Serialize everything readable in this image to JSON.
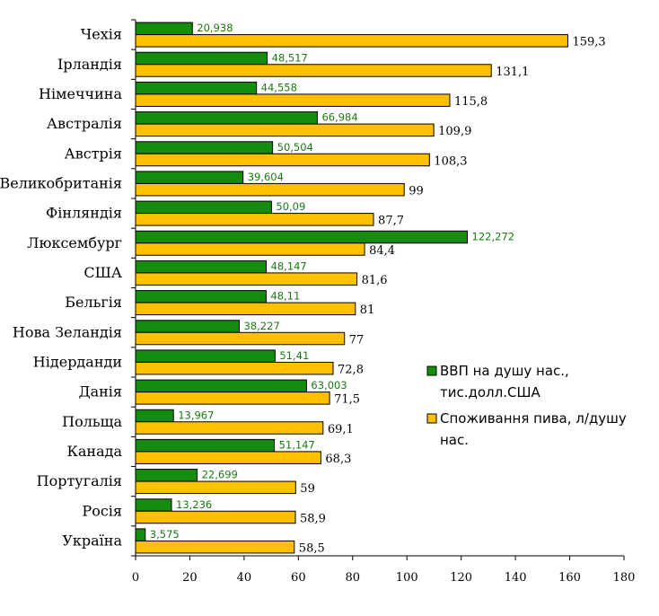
{
  "chart_data": {
    "type": "bar",
    "orientation": "horizontal",
    "categories": [
      "Чехія",
      "Ірландія",
      "Німеччина",
      "Австралія",
      "Австрія",
      "Великобританія",
      "Фінляндія",
      "Люксембург",
      "США",
      "Бельгія",
      "Нова Зеландія",
      "Нідерданди",
      "Данія",
      "Польща",
      "Канада",
      "Португалія",
      "Росія",
      "Україна"
    ],
    "series": [
      {
        "name_lines": [
          "ВВП на душу нас.,",
          "тис.долл.США"
        ],
        "color": "#168c0e",
        "values": [
          20.938,
          48.517,
          44.558,
          66.984,
          50.504,
          39.604,
          50.09,
          122.272,
          48.147,
          48.11,
          38.227,
          51.41,
          63.003,
          13.967,
          51.147,
          22.699,
          13.236,
          3.575
        ],
        "labels": [
          "20,938",
          "48,517",
          "44,558",
          "66,984",
          "50,504",
          "39,604",
          "50,09",
          "122,272",
          "48,147",
          "48,11",
          "38,227",
          "51,41",
          "63,003",
          "13,967",
          "51,147",
          "22,699",
          "13,236",
          "3,575"
        ]
      },
      {
        "name_lines": [
          "Споживання пива, л/душу",
          "нас."
        ],
        "color": "#ffc000",
        "values": [
          159.3,
          131.1,
          115.8,
          109.9,
          108.3,
          99,
          87.7,
          84.4,
          81.6,
          81,
          77,
          72.8,
          71.5,
          69.1,
          68.3,
          59,
          58.9,
          58.5
        ],
        "labels": [
          "159,3",
          "131,1",
          "115,8",
          "109,9",
          "108,3",
          "99",
          "87,7",
          "84,4",
          "81,6",
          "81",
          "77",
          "72,8",
          "71,5",
          "69,1",
          "68,3",
          "59",
          "58,9",
          "58,5"
        ]
      }
    ],
    "xlim": [
      0,
      180
    ],
    "xticks": [
      0,
      20,
      40,
      60,
      80,
      100,
      120,
      140,
      160,
      180
    ],
    "grid": false,
    "legend_position": "right"
  }
}
